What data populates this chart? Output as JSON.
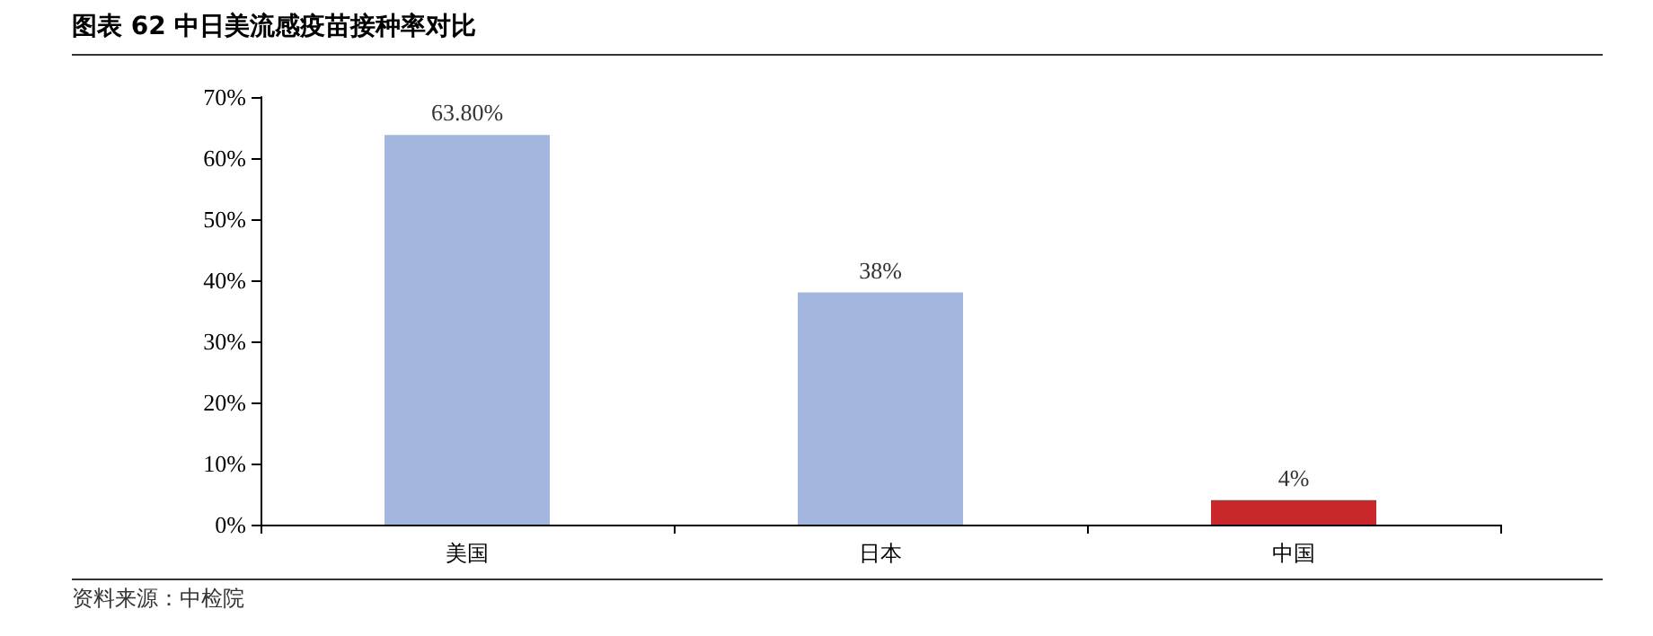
{
  "chart_data": {
    "type": "bar",
    "title": "图表 62 中日美流感疫苗接种率对比",
    "categories": [
      "美国",
      "日本",
      "中国"
    ],
    "values": [
      63.8,
      38,
      4
    ],
    "colors": [
      "#a3b6e0",
      "#a3b6e0",
      "#c8282a"
    ],
    "value_labels": [
      "63.80%",
      "38%",
      "4%"
    ],
    "ylim": [
      0,
      70
    ],
    "yticks": [
      {
        "value": 0,
        "label": "0%"
      },
      {
        "value": 10,
        "label": "10%"
      },
      {
        "value": 20,
        "label": "20%"
      },
      {
        "value": 30,
        "label": "30%"
      },
      {
        "value": 40,
        "label": "40%"
      },
      {
        "value": 50,
        "label": "50%"
      },
      {
        "value": 60,
        "label": "60%"
      },
      {
        "value": 70,
        "label": "70%"
      }
    ],
    "annotations": [
      "资料来源：中检院"
    ]
  }
}
